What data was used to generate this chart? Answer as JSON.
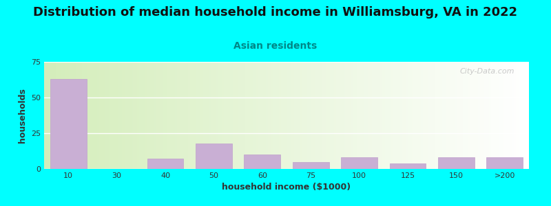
{
  "title": "Distribution of median household income in Williamsburg, VA in 2022",
  "subtitle": "Asian residents",
  "xlabel": "household income ($1000)",
  "ylabel": "households",
  "background_color": "#00FFFF",
  "bar_color": "#c9afd4",
  "bar_edge_color": "#c0a0cc",
  "categories": [
    "10",
    "30",
    "40",
    "50",
    "60",
    "75",
    "100",
    "125",
    "150",
    ">200"
  ],
  "values": [
    63,
    0,
    7,
    18,
    10,
    5,
    8,
    4,
    8,
    8
  ],
  "ylim": [
    0,
    75
  ],
  "yticks": [
    0,
    25,
    50,
    75
  ],
  "title_fontsize": 13,
  "subtitle_fontsize": 10,
  "axis_label_fontsize": 9,
  "tick_fontsize": 8,
  "watermark_text": "City-Data.com",
  "watermark_color": "#c0c0c0",
  "grid_color": "#dddddd",
  "gradient_left": "#d4edbb",
  "gradient_right": "#f8fff8"
}
